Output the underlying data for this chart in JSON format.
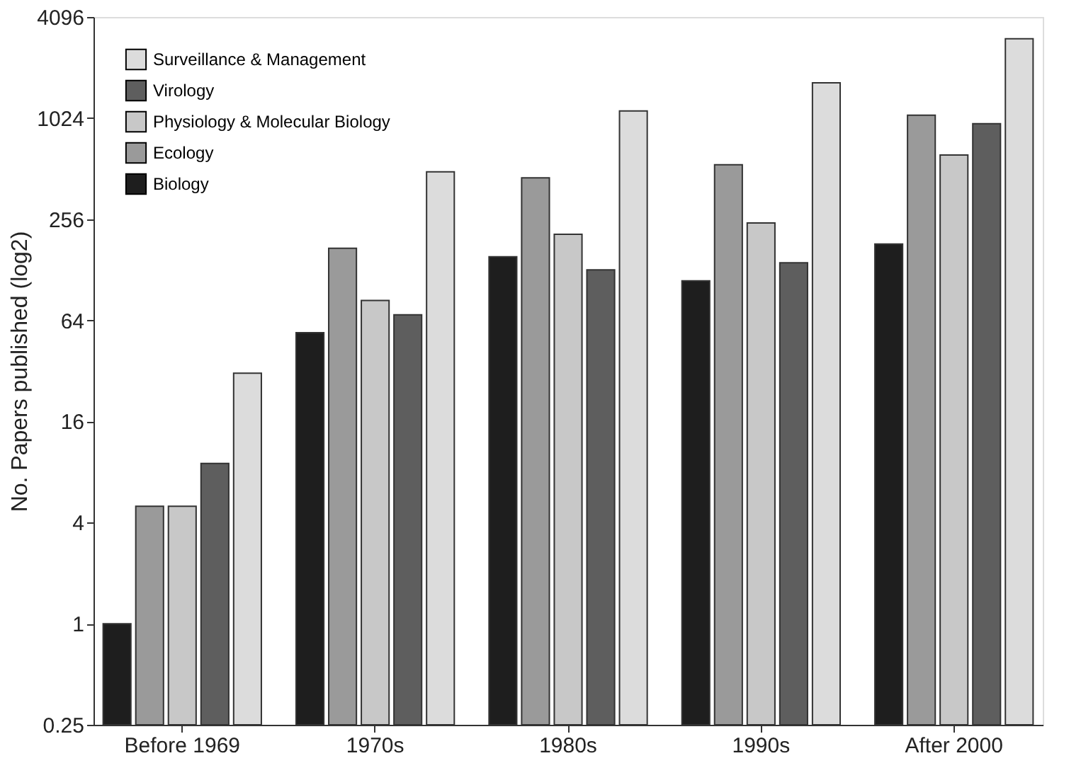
{
  "chart_data": {
    "type": "bar",
    "ylabel": "No. Papers published (log2)",
    "categories": [
      "Before 1969",
      "1970s",
      "1980s",
      "1990s",
      "After 2000"
    ],
    "series": [
      {
        "name": "Biology",
        "color": "#1e1e1e",
        "values": [
          1,
          54,
          153,
          110,
          182
        ]
      },
      {
        "name": "Ecology",
        "color": "#9a9a9a",
        "values": [
          5,
          172,
          452,
          540,
          1065
        ]
      },
      {
        "name": "Physiology & Molecular Biology",
        "color": "#c8c8c8",
        "values": [
          5,
          84,
          208,
          243,
          618
        ]
      },
      {
        "name": "Virology",
        "color": "#5e5e5e",
        "values": [
          9,
          69,
          128,
          141,
          948
        ]
      },
      {
        "name": "Surveillance & Management",
        "color": "#dcdcdc",
        "values": [
          31,
          490,
          1130,
          1660,
          3040
        ]
      }
    ],
    "log": true,
    "ylim": [
      0.25,
      4096
    ],
    "yticks": [
      0.25,
      1,
      4,
      16,
      64,
      256,
      1024,
      4096
    ],
    "grid": false,
    "legend": "top left"
  }
}
